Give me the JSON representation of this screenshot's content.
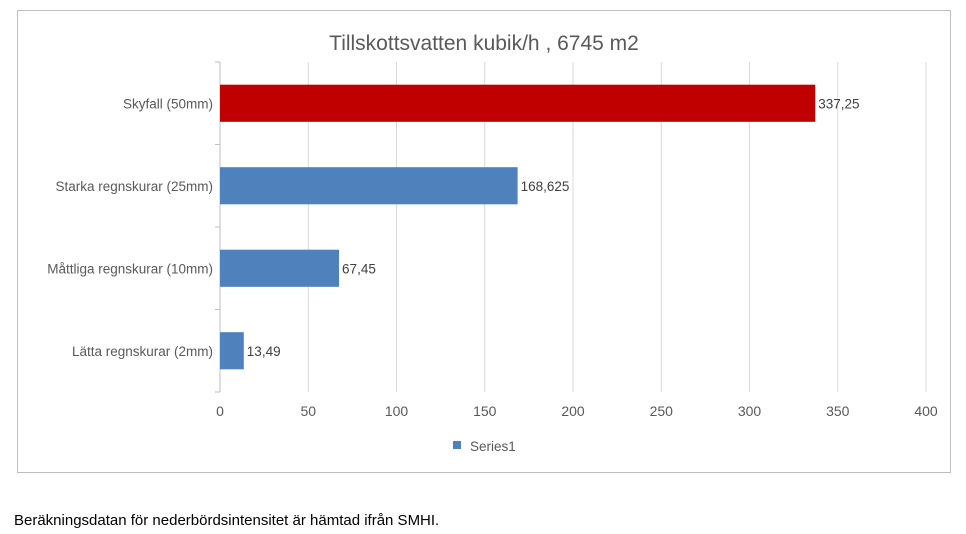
{
  "chart_data": {
    "type": "bar",
    "orientation": "horizontal",
    "title": "Tillskottsvatten kubik/h , 6745 m2",
    "categories": [
      "Skyfall (50mm)",
      "Starka regnskurar (25mm)",
      "Måttliga regnskurar (10mm)",
      "Lätta regnskurar (2mm)"
    ],
    "series": [
      {
        "name": "Series1",
        "values": [
          337.25,
          168.625,
          67.45,
          13.49
        ]
      }
    ],
    "data_labels": [
      "337,25",
      "168,625",
      "67,45",
      "13,49"
    ],
    "bar_colors": [
      "#c00000",
      "#4f81bd",
      "#4f81bd",
      "#4f81bd"
    ],
    "xlim": [
      0,
      400
    ],
    "xticks": [
      0,
      50,
      100,
      150,
      200,
      250,
      300,
      350,
      400
    ],
    "grid": true,
    "legend": "bottom",
    "xlabel": "",
    "ylabel": ""
  },
  "caption": "Beräkningsdatan för nederbördsintensitet är hämtad ifrån SMHI."
}
